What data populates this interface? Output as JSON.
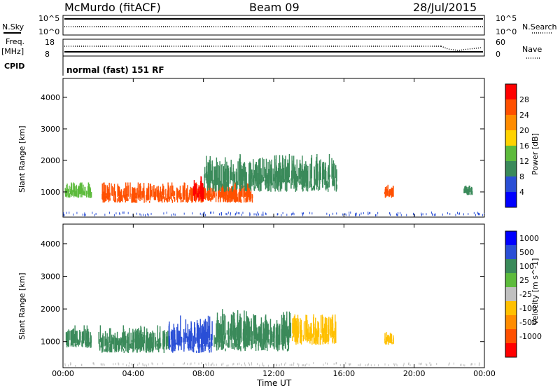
{
  "header": {
    "station": "McMurdo (fitACF)",
    "beam": "Beam 09",
    "date": "28/Jul/2015"
  },
  "status_panels": {
    "nsky_label": "N.Sky",
    "nsearch_label": "N.Search",
    "nsky_ticks": [
      "10^5",
      "10^0"
    ],
    "nsearch_ticks": [
      "10^5",
      "10^0"
    ],
    "freq_label": "Freq.",
    "freq_unit": "[MHz]",
    "freq_ticks": [
      "18",
      "8"
    ],
    "nave_label": "Nave",
    "nave_ticks": [
      "60",
      "0"
    ],
    "cpid_label": "CPID",
    "cpid_value": "normal (fast) 151 RF"
  },
  "colors": {
    "power_scale": [
      "#0000ff",
      "#2a4fd6",
      "#3a8a5a",
      "#5dbb3c",
      "#ffd200",
      "#ff8c00",
      "#ff5000",
      "#ff0000"
    ],
    "velocity_scale": [
      "#ff0000",
      "#ff5000",
      "#ff8c00",
      "#ffc000",
      "#c0c0c0",
      "#5dbb3c",
      "#3a8a5a",
      "#2a4fd6",
      "#0000ff"
    ]
  },
  "chart_data": [
    {
      "type": "heatmap",
      "name": "power",
      "ylabel": "Slant Range [km]",
      "yticks": [
        "1000",
        "2000",
        "3000",
        "4000"
      ],
      "ylim": [
        200,
        4600
      ],
      "colorbar_label": "Power [dB]",
      "colorbar_ticks": [
        "4",
        "8",
        "12",
        "16",
        "20",
        "24",
        "28"
      ],
      "echo_regions": [
        {
          "t0": 0.1,
          "t1": 1.6,
          "r0": 800,
          "r1": 1300,
          "level": 3
        },
        {
          "t0": 2.2,
          "t1": 10.8,
          "r0": 650,
          "r1": 1300,
          "level": 6
        },
        {
          "t0": 7.4,
          "t1": 8.0,
          "r0": 700,
          "r1": 1500,
          "level": 7
        },
        {
          "t0": 8.0,
          "t1": 15.6,
          "r0": 1000,
          "r1": 2200,
          "level": 2
        },
        {
          "t0": 18.3,
          "t1": 18.8,
          "r0": 800,
          "r1": 1300,
          "level": 6
        },
        {
          "t0": 22.8,
          "t1": 23.3,
          "r0": 900,
          "r1": 1200,
          "level": 2
        }
      ]
    },
    {
      "type": "heatmap",
      "name": "velocity",
      "ylabel": "Slant Range [km]",
      "xlabel": "Time UT",
      "xticks": [
        "00:00",
        "04:00",
        "08:00",
        "12:00",
        "16:00",
        "20:00",
        "00:00"
      ],
      "yticks": [
        "1000",
        "2000",
        "3000",
        "4000"
      ],
      "ylim": [
        200,
        4600
      ],
      "colorbar_label": "Velocity [m s^-1]",
      "colorbar_ticks": [
        "1000",
        "500",
        "100",
        "25",
        "-25",
        "-100",
        "-500",
        "-1000"
      ],
      "echo_regions": [
        {
          "t0": 0.1,
          "t1": 1.6,
          "r0": 800,
          "r1": 1500,
          "v": 100
        },
        {
          "t0": 2.0,
          "t1": 6.0,
          "r0": 650,
          "r1": 1500,
          "v": 100
        },
        {
          "t0": 6.0,
          "t1": 8.5,
          "r0": 650,
          "r1": 1800,
          "v": 500
        },
        {
          "t0": 8.5,
          "t1": 13.0,
          "r0": 700,
          "r1": 2000,
          "v": 100
        },
        {
          "t0": 13.0,
          "t1": 15.6,
          "r0": 900,
          "r1": 1900,
          "v": -100
        },
        {
          "t0": 18.3,
          "t1": 18.8,
          "r0": 900,
          "r1": 1300,
          "v": -100
        }
      ]
    }
  ]
}
